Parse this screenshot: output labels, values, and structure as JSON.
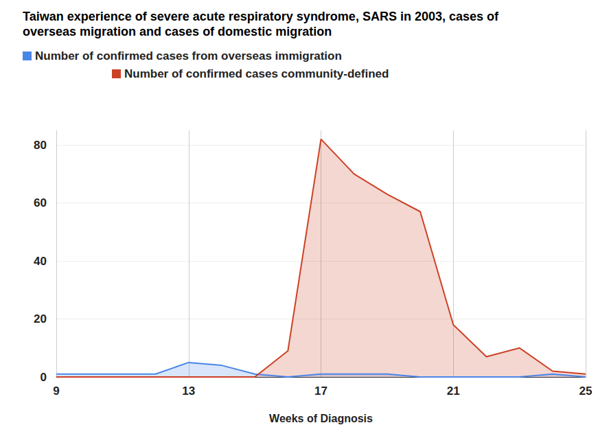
{
  "chart_data": {
    "type": "line",
    "title": "Taiwan experience of severe acute respiratory syndrome, SARS in 2003, cases of overseas migration and cases of domestic migration",
    "x_label": "Weeks of Diagnosis",
    "x": [
      9,
      10,
      11,
      12,
      13,
      14,
      15,
      16,
      17,
      18,
      19,
      20,
      21,
      22,
      23,
      24,
      25
    ],
    "series": [
      {
        "name": "Number of confirmed cases from overseas immigration",
        "color": "#4a86e8",
        "values": [
          1,
          1,
          1,
          1,
          5,
          4,
          1,
          0,
          1,
          1,
          1,
          0,
          0,
          0,
          0,
          1,
          0
        ]
      },
      {
        "name": "Number of confirmed cases community-defined",
        "color": "#cc4125",
        "values": [
          0,
          0,
          0,
          0,
          0,
          0,
          0,
          9,
          82,
          70,
          63,
          57,
          18,
          7,
          10,
          2,
          1
        ]
      }
    ],
    "xlim": [
      9,
      25
    ],
    "xticks": [
      9,
      13,
      17,
      21,
      25
    ],
    "ylim": [
      0,
      85
    ],
    "yticks": [
      0,
      20,
      40,
      60,
      80
    ],
    "grid": true,
    "legend": "top"
  }
}
